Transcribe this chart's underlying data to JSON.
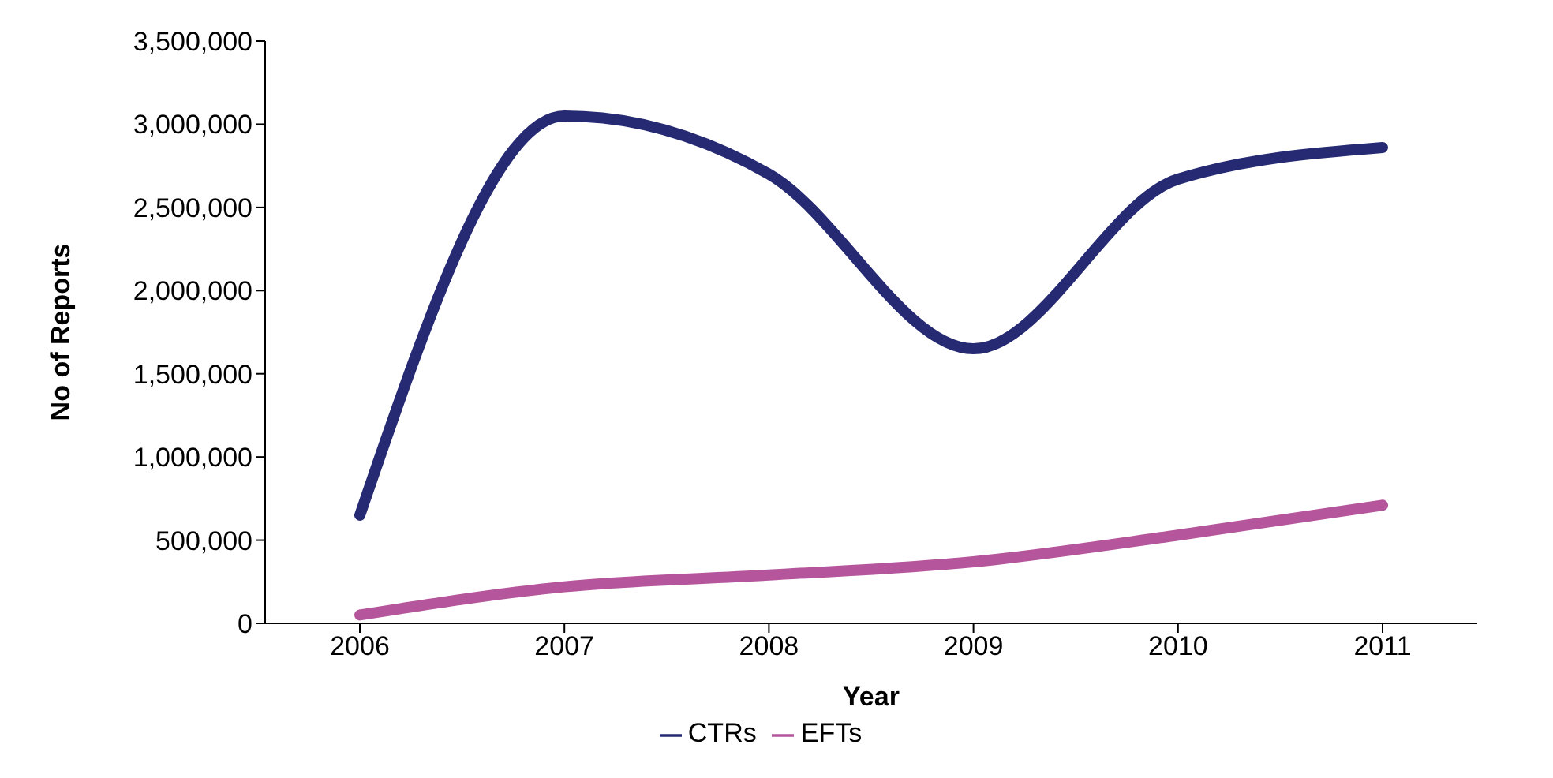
{
  "chart_data": {
    "type": "line",
    "xlabel": "Year",
    "ylabel": "No of Reports",
    "categories": [
      "2006",
      "2007",
      "2008",
      "2009",
      "2010",
      "2011"
    ],
    "series": [
      {
        "name": "CTRs",
        "color": "#262a72",
        "values": [
          650000,
          3050000,
          2700000,
          1650000,
          2670000,
          2860000
        ]
      },
      {
        "name": "EFTs",
        "color": "#b5559c",
        "values": [
          50000,
          220000,
          290000,
          370000,
          530000,
          710000
        ]
      }
    ],
    "ylim": [
      0,
      3500000
    ],
    "yticks": [
      0,
      {
        "value": 500000,
        "label": "500,000"
      },
      {
        "value": 1000000,
        "label": "1,000,000"
      },
      {
        "value": 1500000,
        "label": "1,500,000"
      },
      {
        "value": 2000000,
        "label": "2,000,000"
      },
      {
        "value": 2500000,
        "label": "2,500,000"
      },
      {
        "value": 3000000,
        "label": "3,000,000"
      },
      {
        "value": 3500000,
        "label": "3,500,000"
      }
    ],
    "grid": false,
    "legend": "bottom",
    "marker": "none",
    "line_style": "solid"
  }
}
